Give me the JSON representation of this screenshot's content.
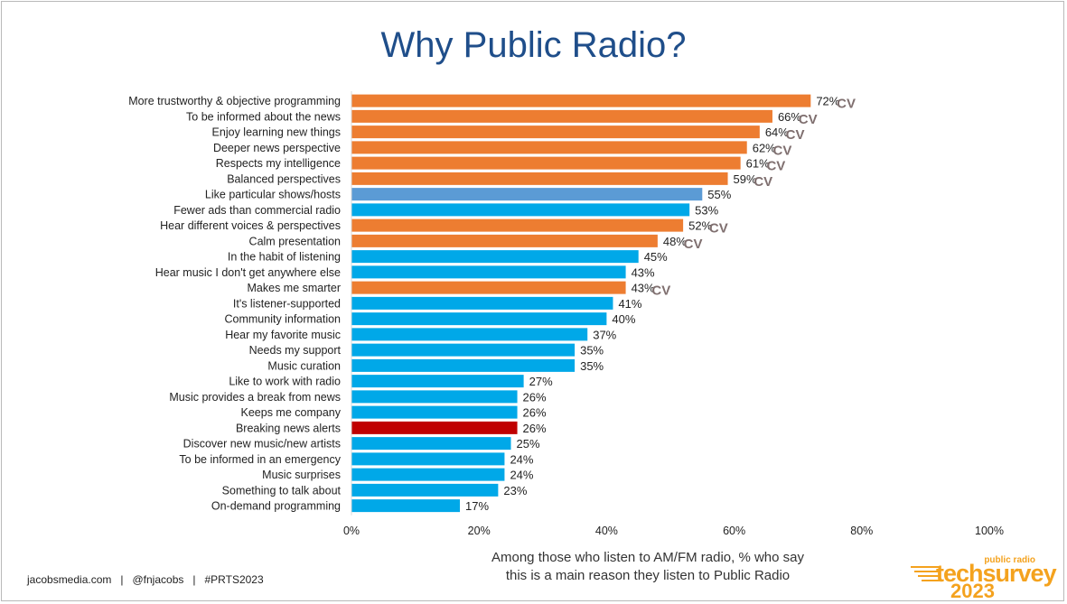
{
  "title": "Why Public Radio?",
  "caption_line1": "Among those who listen to AM/FM radio, % who say",
  "caption_line2": "this is a main reason they listen to Public Radio",
  "footer": "jacobsmedia.com   |   @fnjacobs   |   #PRTS2023",
  "logo": {
    "top": "public radio",
    "main": "techsurvey",
    "year": "2023"
  },
  "colors": {
    "orange": "#ed7d31",
    "blue": "#00a8e8",
    "lightblue": "#5b9bd5",
    "red": "#c00000",
    "cv": "#7f6f6f",
    "title": "#1f4e8a"
  },
  "chart_data": {
    "type": "bar",
    "orientation": "horizontal",
    "xlim": [
      0,
      100
    ],
    "xticks": [
      "0%",
      "20%",
      "40%",
      "60%",
      "80%",
      "100%"
    ],
    "grid": false,
    "cv_marker": "CV",
    "bars": [
      {
        "label": "More trustworthy & objective programming",
        "value": 72,
        "color": "orange",
        "cv": true
      },
      {
        "label": "To be informed about the news",
        "value": 66,
        "color": "orange",
        "cv": true
      },
      {
        "label": "Enjoy learning new things",
        "value": 64,
        "color": "orange",
        "cv": true
      },
      {
        "label": "Deeper news perspective",
        "value": 62,
        "color": "orange",
        "cv": true
      },
      {
        "label": "Respects my intelligence",
        "value": 61,
        "color": "orange",
        "cv": true
      },
      {
        "label": "Balanced perspectives",
        "value": 59,
        "color": "orange",
        "cv": true
      },
      {
        "label": "Like particular shows/hosts",
        "value": 55,
        "color": "lightblue",
        "cv": false
      },
      {
        "label": "Fewer ads than commercial radio",
        "value": 53,
        "color": "blue",
        "cv": false
      },
      {
        "label": "Hear different voices & perspectives",
        "value": 52,
        "color": "orange",
        "cv": true
      },
      {
        "label": "Calm presentation",
        "value": 48,
        "color": "orange",
        "cv": true
      },
      {
        "label": "In the habit of listening",
        "value": 45,
        "color": "blue",
        "cv": false
      },
      {
        "label": "Hear music I don't get anywhere else",
        "value": 43,
        "color": "blue",
        "cv": false
      },
      {
        "label": "Makes me smarter",
        "value": 43,
        "color": "orange",
        "cv": true
      },
      {
        "label": "It's listener-supported",
        "value": 41,
        "color": "blue",
        "cv": false
      },
      {
        "label": "Community information",
        "value": 40,
        "color": "blue",
        "cv": false
      },
      {
        "label": "Hear my favorite music",
        "value": 37,
        "color": "blue",
        "cv": false
      },
      {
        "label": "Needs my support",
        "value": 35,
        "color": "blue",
        "cv": false
      },
      {
        "label": "Music curation",
        "value": 35,
        "color": "blue",
        "cv": false
      },
      {
        "label": "Like to work with radio",
        "value": 27,
        "color": "blue",
        "cv": false
      },
      {
        "label": "Music provides a break from news",
        "value": 26,
        "color": "blue",
        "cv": false
      },
      {
        "label": "Keeps me company",
        "value": 26,
        "color": "blue",
        "cv": false
      },
      {
        "label": "Breaking news alerts",
        "value": 26,
        "color": "red",
        "cv": false
      },
      {
        "label": "Discover new music/new artists",
        "value": 25,
        "color": "blue",
        "cv": false
      },
      {
        "label": "To be informed in an emergency",
        "value": 24,
        "color": "blue",
        "cv": false
      },
      {
        "label": "Music surprises",
        "value": 24,
        "color": "blue",
        "cv": false
      },
      {
        "label": "Something to talk about",
        "value": 23,
        "color": "blue",
        "cv": false
      },
      {
        "label": "On-demand programming",
        "value": 17,
        "color": "blue",
        "cv": false
      }
    ]
  }
}
